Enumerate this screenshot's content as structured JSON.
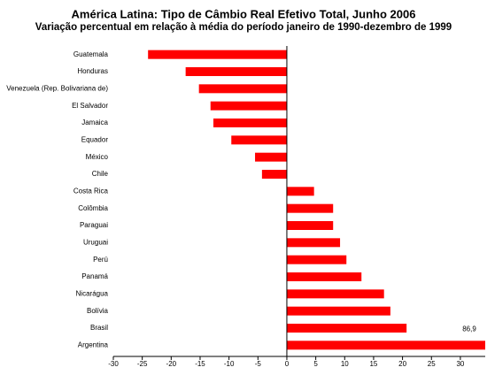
{
  "chart_data": {
    "type": "bar",
    "orientation": "horizontal",
    "title": "América Latina: Tipo de Câmbio Real Efetivo Total, Junho 2006",
    "subtitle": "Variação percentual em relação à média do período janeiro de 1990-dezembro de 1999",
    "categories": [
      "Guatemala",
      "Honduras",
      "Venezuela (Rep. Bolivariana de)",
      "El Salvador",
      "Jamaica",
      "Equador",
      "México",
      "Chile",
      "Costa Rica",
      "Colômbia",
      "Paraguai",
      "Uruguai",
      "Perú",
      "Panamá",
      "Nicarágua",
      "Bolívia",
      "Brasil",
      "Argentina"
    ],
    "values": [
      -24.0,
      -17.5,
      -15.2,
      -13.2,
      -12.7,
      -9.6,
      -5.5,
      -4.3,
      4.7,
      8.0,
      8.0,
      9.2,
      10.3,
      12.9,
      16.8,
      17.9,
      20.7,
      86.9
    ],
    "value_labels": [
      null,
      null,
      null,
      null,
      null,
      null,
      null,
      null,
      null,
      null,
      null,
      null,
      null,
      null,
      null,
      null,
      null,
      "86,9"
    ],
    "color": "#ff0000",
    "xlim": [
      -30,
      34.3
    ],
    "xticks": [
      -30,
      -25,
      -20,
      -15,
      -10,
      -5,
      0,
      5,
      10,
      15,
      20,
      25,
      30
    ]
  }
}
